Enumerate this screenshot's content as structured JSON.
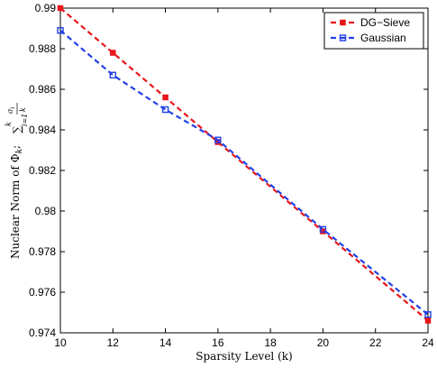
{
  "chart_data": {
    "type": "line",
    "title": "",
    "xlabel": "Sparsity Level (k)",
    "ylabel": "Nuclear Norm of Φ",
    "ylabel_math": {
      "sub": "k",
      "colon": ";",
      "sum_symbol": "∑",
      "sum_top": "k",
      "sum_bottom": "i=1",
      "num": "σ",
      "num_sub": "i",
      "den": "k"
    },
    "xlim": [
      10,
      24
    ],
    "ylim": [
      0.974,
      0.99
    ],
    "xticks": [
      10,
      12,
      14,
      16,
      18,
      20,
      22,
      24
    ],
    "yticks": [
      0.974,
      0.976,
      0.978,
      0.98,
      0.982,
      0.984,
      0.986,
      0.988,
      0.99
    ],
    "ytick_labels": [
      "0.974",
      "0.976",
      "0.978",
      "0.98",
      "0.982",
      "0.984",
      "0.986",
      "0.988",
      "0.99"
    ],
    "grid": false,
    "legend_position": "top-right",
    "x": [
      10,
      12,
      14,
      16,
      20,
      24
    ],
    "series": [
      {
        "name": "DG−Sieve",
        "color": "#e8161b",
        "marker": "filled-square",
        "values": [
          0.99,
          0.9878,
          0.9856,
          0.9834,
          0.979,
          0.9746
        ]
      },
      {
        "name": "Gaussian",
        "color": "#2240e8",
        "marker": "open-square",
        "values": [
          0.9889,
          0.9867,
          0.985,
          0.9835,
          0.9791,
          0.9749
        ]
      }
    ]
  }
}
